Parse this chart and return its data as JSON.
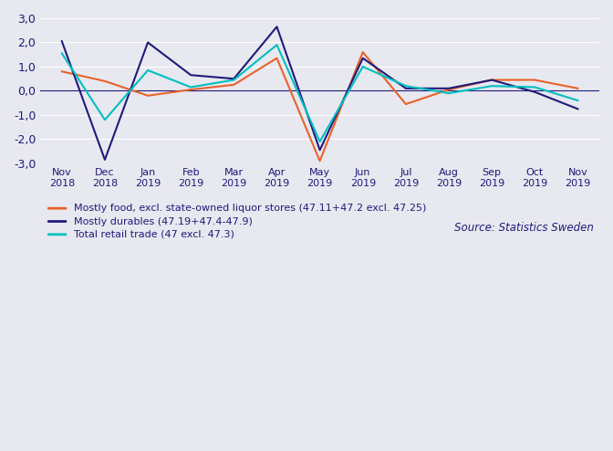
{
  "x_labels": [
    "Nov\n2018",
    "Dec\n2018",
    "Jan\n2019",
    "Feb\n2019",
    "Mar\n2019",
    "Apr\n2019",
    "May\n2019",
    "Jun\n2019",
    "Jul\n2019",
    "Aug\n2019",
    "Sep\n2019",
    "Oct\n2019",
    "Nov\n2019"
  ],
  "mostly_food": [
    0.8,
    0.4,
    -0.2,
    0.05,
    0.25,
    1.35,
    -2.9,
    1.6,
    -0.55,
    0.05,
    0.45,
    0.45,
    0.1
  ],
  "mostly_durables": [
    2.05,
    -2.85,
    2.0,
    0.65,
    0.5,
    2.65,
    -2.45,
    1.35,
    0.1,
    0.1,
    0.45,
    -0.05,
    -0.75
  ],
  "total_retail": [
    1.55,
    -1.2,
    0.85,
    0.15,
    0.45,
    1.9,
    -2.1,
    1.0,
    0.2,
    -0.1,
    0.2,
    0.15,
    -0.4
  ],
  "food_color": "#E8622A",
  "durables_color": "#1F1A7A",
  "retail_color": "#00BFBF",
  "ylim": [
    -3.0,
    3.0
  ],
  "yticks": [
    -3.0,
    -2.0,
    -1.0,
    0.0,
    1.0,
    2.0,
    3.0
  ],
  "legend_food": "Mostly food, excl. state-owned liquor stores (47.11+47.2 excl. 47.25)",
  "legend_durables": "Mostly durables (47.19+47.4-47.9)",
  "legend_retail": "Total retail trade (47 excl. 47.3)",
  "source_text": "Source: Statistics Sweden",
  "background_color": "#E8E8F0",
  "grid_color": "#FFFFFF",
  "axis_label_color": "#1F1A7A",
  "tick_label_color": "#1F1A7A"
}
